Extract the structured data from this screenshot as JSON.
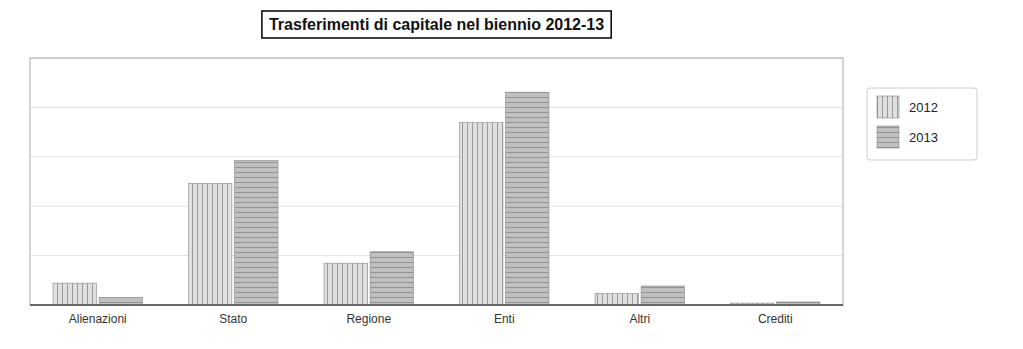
{
  "chart_data": {
    "type": "bar",
    "title": "Trasferimenti di capitale nel biennio 2012-13",
    "categories": [
      "Alienazioni",
      "Stato",
      "Regione",
      "Enti",
      "Altri",
      "Crediti"
    ],
    "series": [
      {
        "name": "2012",
        "color": "#e0e0e0",
        "values": [
          575000,
          3200000,
          1100000,
          4800000,
          300000,
          50000
        ]
      },
      {
        "name": "2013",
        "color": "#c0c0c0",
        "values": [
          200000,
          3800000,
          1400000,
          5600000,
          500000,
          80000
        ]
      }
    ],
    "ylim": [
      0,
      6500000
    ],
    "yticks": [
      0,
      1300000,
      2600000,
      3900000,
      5200000,
      6500000
    ],
    "grid": true,
    "legend": "right",
    "tick_labels": "x"
  }
}
